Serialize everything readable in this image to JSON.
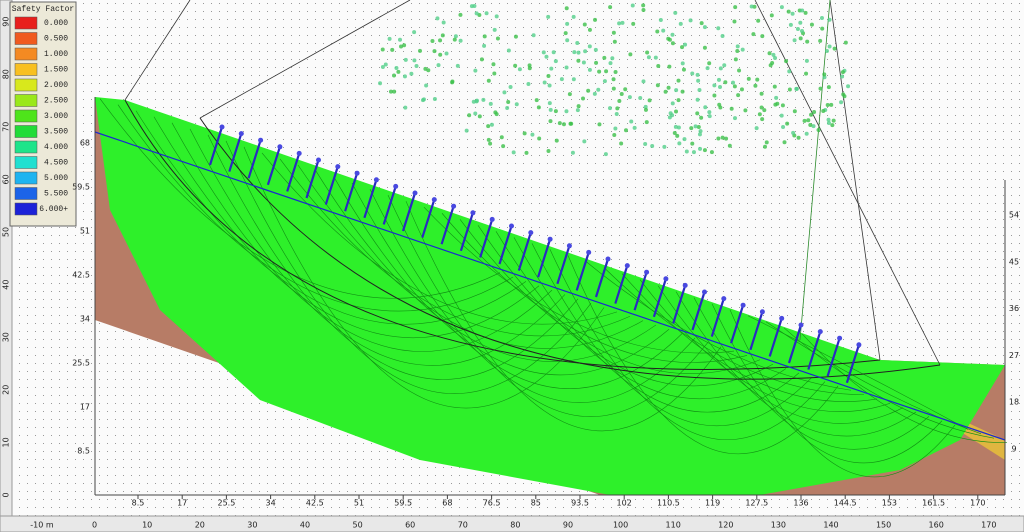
{
  "legend": {
    "title": "Safety Factor",
    "items": [
      {
        "label": "0.000",
        "color": "#e8201c"
      },
      {
        "label": "0.500",
        "color": "#f05a1e"
      },
      {
        "label": "1.000",
        "color": "#f48a22"
      },
      {
        "label": "1.500",
        "color": "#f8c020"
      },
      {
        "label": "2.000",
        "color": "#d8e81c"
      },
      {
        "label": "2.500",
        "color": "#9ae81a"
      },
      {
        "label": "3.000",
        "color": "#4ee41a"
      },
      {
        "label": "3.500",
        "color": "#22dc38"
      },
      {
        "label": "4.000",
        "color": "#1ee48a"
      },
      {
        "label": "4.500",
        "color": "#20e0d0"
      },
      {
        "label": "5.000",
        "color": "#1eb4f0"
      },
      {
        "label": "5.500",
        "color": "#1c64e8"
      },
      {
        "label": "6.000+",
        "color": "#1c22d8"
      }
    ]
  },
  "rulers": {
    "bottom": [
      "-10 m",
      "0",
      "10",
      "20",
      "30",
      "40",
      "50",
      "60",
      "70",
      "80",
      "90",
      "100",
      "110",
      "120",
      "130",
      "140",
      "150",
      "160",
      "170"
    ],
    "left": [
      "0",
      "10",
      "20",
      "30",
      "40",
      "50",
      "60",
      "70",
      "80",
      "90"
    ]
  },
  "axes": {
    "x": [
      "8.5",
      "17",
      "25.5",
      "34",
      "42.5",
      "51",
      "59.5",
      "68",
      "76.5",
      "85",
      "93.5",
      "102",
      "110.5",
      "119",
      "127.5",
      "136",
      "144.5",
      "153",
      "161.5",
      "170"
    ],
    "y_left": [
      "8.5",
      "17",
      "25.5",
      "34",
      "42.5",
      "51",
      "59.5",
      "68"
    ],
    "y_right": [
      "9",
      "18",
      "27",
      "36",
      "45",
      "54"
    ]
  }
}
